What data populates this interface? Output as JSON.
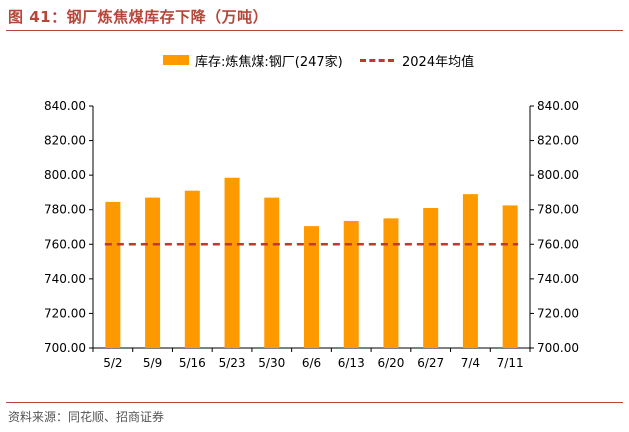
{
  "header": {
    "title": "图 41：钢厂炼焦煤库存下降（万吨）"
  },
  "footer": {
    "source": "资料来源：同花顺、招商证券"
  },
  "colors": {
    "bar": "#ff9900",
    "avg_line": "#c0392b",
    "accent": "#b5473a"
  },
  "chart_data": {
    "type": "bar",
    "title": "钢厂炼焦煤库存下降（万吨）",
    "categories": [
      "5/2",
      "5/9",
      "5/16",
      "5/23",
      "5/30",
      "6/6",
      "6/13",
      "6/20",
      "6/27",
      "7/4",
      "7/11"
    ],
    "series": [
      {
        "name": "库存:炼焦煤:钢厂(247家)",
        "type": "bar",
        "values": [
          784.5,
          787,
          791,
          798.5,
          787,
          770.5,
          773.5,
          775,
          781,
          789,
          782.5
        ]
      },
      {
        "name": "2024年均值",
        "type": "line",
        "style": "dashed",
        "values": [
          760,
          760,
          760,
          760,
          760,
          760,
          760,
          760,
          760,
          760,
          760
        ]
      }
    ],
    "ylim": [
      700,
      840
    ],
    "yticks": [
      "700.00",
      "720.00",
      "740.00",
      "760.00",
      "780.00",
      "800.00",
      "820.00",
      "840.00"
    ],
    "y2ticks": [
      "700.00",
      "720.00",
      "740.00",
      "760.00",
      "780.00",
      "800.00",
      "820.00",
      "840.00"
    ],
    "legend": {
      "position": "top",
      "entries": [
        "库存:炼焦煤:钢厂(247家)",
        "2024年均值"
      ]
    },
    "xlabel": "",
    "ylabel": "",
    "grid": false
  }
}
